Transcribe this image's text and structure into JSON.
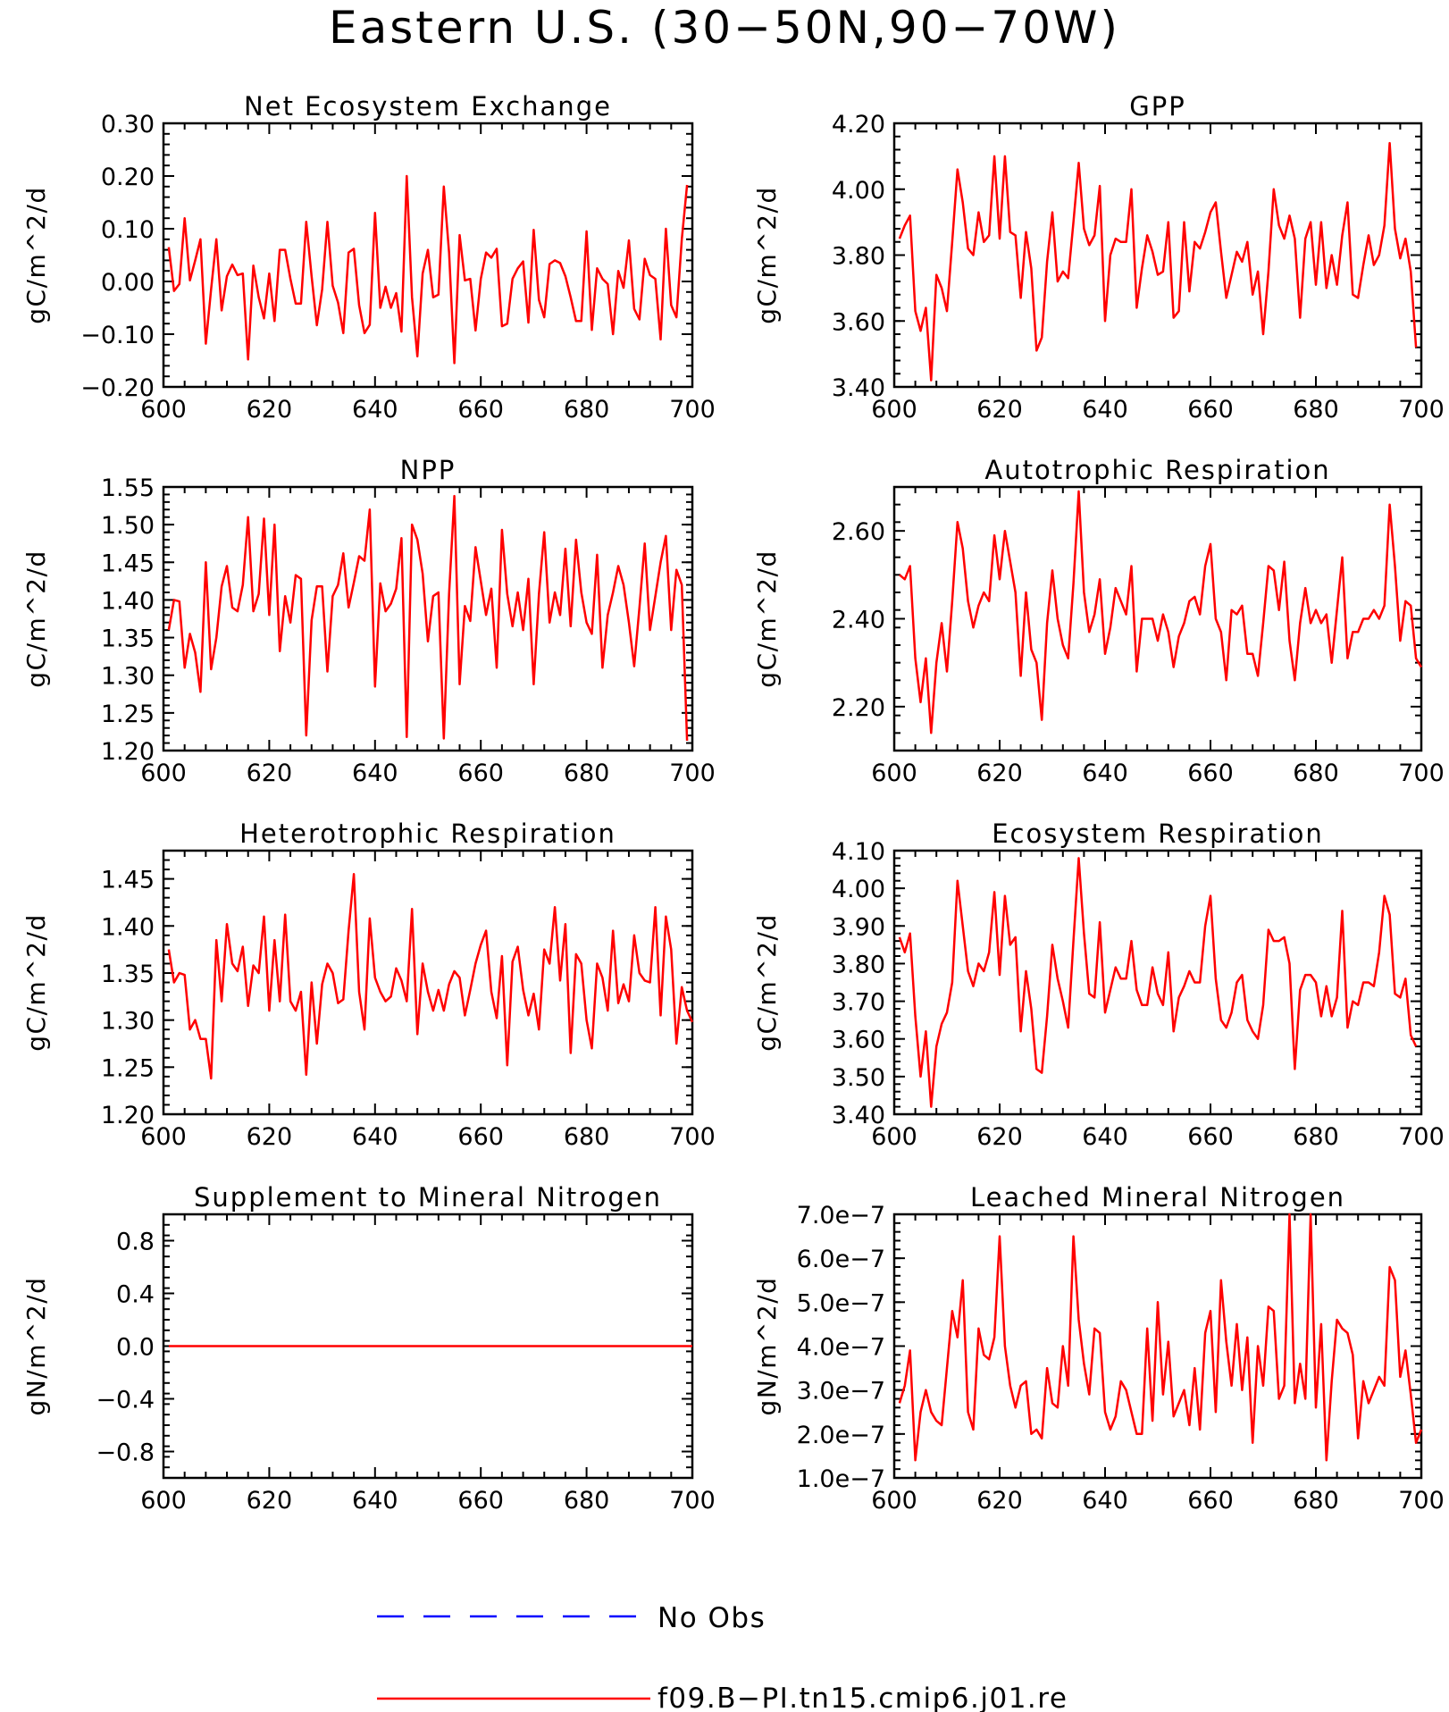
{
  "title": "Eastern U.S. (30−50N,90−70W)",
  "colors": {
    "model": "#ff0000",
    "obs": "#0000ff",
    "axis": "#000000"
  },
  "legend": [
    {
      "label": "No Obs",
      "color": "#0000ff",
      "style": "dashed"
    },
    {
      "label": "f09.B−PI.tn15.cmip6.j01.re",
      "color": "#ff0000",
      "style": "solid"
    }
  ],
  "chart_data": [
    {
      "type": "line",
      "title": "Net Ecosystem Exchange",
      "ylabel": "gC/m^2/d",
      "xlim": [
        600,
        700
      ],
      "xticks": [
        "600",
        "620",
        "640",
        "660",
        "680",
        "700"
      ],
      "ylim": [
        -0.2,
        0.3
      ],
      "yticks": [
        "−0.20",
        "−0.10",
        "0.00",
        "0.10",
        "0.20",
        "0.30"
      ],
      "x_start": 601,
      "series": [
        {
          "color": "#ff0000",
          "values": [
            0.065,
            -0.018,
            -0.005,
            0.12,
            0.002,
            0.04,
            0.08,
            -0.118,
            -0.015,
            0.08,
            -0.055,
            0.01,
            0.032,
            0.012,
            0.015,
            -0.148,
            0.03,
            -0.03,
            -0.07,
            0.015,
            -0.075,
            0.06,
            0.06,
            0.005,
            -0.042,
            -0.042,
            0.113,
            0.01,
            -0.083,
            -0.015,
            0.113,
            -0.008,
            -0.04,
            -0.098,
            0.055,
            0.062,
            -0.045,
            -0.098,
            -0.082,
            0.13,
            -0.05,
            -0.01,
            -0.05,
            -0.022,
            -0.095,
            0.2,
            -0.03,
            -0.142,
            0.015,
            0.06,
            -0.03,
            -0.025,
            0.18,
            0.055,
            -0.155,
            0.088,
            0.002,
            0.005,
            -0.093,
            0.005,
            0.055,
            0.045,
            0.062,
            -0.085,
            -0.08,
            0.005,
            0.025,
            0.038,
            -0.078,
            0.098,
            -0.035,
            -0.068,
            0.033,
            0.04,
            0.035,
            0.01,
            -0.03,
            -0.075,
            -0.075,
            0.095,
            -0.092,
            0.025,
            0.005,
            -0.005,
            -0.1,
            0.02,
            -0.012,
            0.078,
            -0.052,
            -0.072,
            0.043,
            0.012,
            0.005,
            -0.11,
            0.1,
            -0.045,
            -0.068,
            0.08,
            0.183
          ]
        }
      ]
    },
    {
      "type": "line",
      "title": "GPP",
      "ylabel": "gC/m^2/d",
      "xlim": [
        600,
        700
      ],
      "xticks": [
        "600",
        "620",
        "640",
        "660",
        "680",
        "700"
      ],
      "ylim": [
        3.4,
        4.2
      ],
      "yticks": [
        "3.40",
        "3.60",
        "3.80",
        "4.00",
        "4.20"
      ],
      "x_start": 601,
      "series": [
        {
          "color": "#ff0000",
          "values": [
            3.85,
            3.89,
            3.92,
            3.63,
            3.57,
            3.64,
            3.42,
            3.74,
            3.7,
            3.63,
            3.84,
            4.06,
            3.96,
            3.82,
            3.8,
            3.93,
            3.84,
            3.86,
            4.1,
            3.85,
            4.1,
            3.87,
            3.86,
            3.67,
            3.87,
            3.76,
            3.51,
            3.55,
            3.78,
            3.93,
            3.72,
            3.75,
            3.73,
            3.9,
            4.08,
            3.88,
            3.83,
            3.86,
            4.01,
            3.6,
            3.8,
            3.85,
            3.84,
            3.84,
            4.0,
            3.64,
            3.76,
            3.86,
            3.81,
            3.74,
            3.75,
            3.9,
            3.61,
            3.63,
            3.9,
            3.69,
            3.84,
            3.82,
            3.87,
            3.93,
            3.96,
            3.81,
            3.67,
            3.74,
            3.81,
            3.78,
            3.84,
            3.68,
            3.75,
            3.56,
            3.75,
            4.0,
            3.89,
            3.85,
            3.92,
            3.85,
            3.61,
            3.85,
            3.9,
            3.71,
            3.9,
            3.7,
            3.8,
            3.71,
            3.86,
            3.96,
            3.68,
            3.67,
            3.77,
            3.86,
            3.77,
            3.8,
            3.89,
            4.14,
            3.88,
            3.79,
            3.85,
            3.75,
            3.52
          ]
        }
      ]
    },
    {
      "type": "line",
      "title": "NPP",
      "ylabel": "gC/m^2/d",
      "xlim": [
        600,
        700
      ],
      "xticks": [
        "600",
        "620",
        "640",
        "660",
        "680",
        "700"
      ],
      "ylim": [
        1.2,
        1.55
      ],
      "yticks": [
        "1.20",
        "1.25",
        "1.30",
        "1.35",
        "1.40",
        "1.45",
        "1.50",
        "1.55"
      ],
      "x_start": 601,
      "series": [
        {
          "color": "#ff0000",
          "values": [
            1.36,
            1.4,
            1.398,
            1.31,
            1.355,
            1.33,
            1.278,
            1.45,
            1.308,
            1.35,
            1.418,
            1.445,
            1.39,
            1.385,
            1.42,
            1.51,
            1.385,
            1.408,
            1.508,
            1.38,
            1.5,
            1.332,
            1.405,
            1.37,
            1.433,
            1.428,
            1.22,
            1.373,
            1.418,
            1.418,
            1.305,
            1.405,
            1.42,
            1.462,
            1.39,
            1.423,
            1.458,
            1.452,
            1.52,
            1.285,
            1.422,
            1.385,
            1.395,
            1.415,
            1.482,
            1.218,
            1.5,
            1.48,
            1.435,
            1.345,
            1.405,
            1.41,
            1.216,
            1.408,
            1.538,
            1.288,
            1.392,
            1.372,
            1.47,
            1.425,
            1.38,
            1.415,
            1.31,
            1.493,
            1.408,
            1.365,
            1.41,
            1.36,
            1.428,
            1.288,
            1.408,
            1.49,
            1.37,
            1.41,
            1.38,
            1.468,
            1.365,
            1.48,
            1.41,
            1.37,
            1.355,
            1.46,
            1.31,
            1.38,
            1.41,
            1.445,
            1.42,
            1.37,
            1.312,
            1.39,
            1.475,
            1.36,
            1.405,
            1.45,
            1.485,
            1.36,
            1.44,
            1.42,
            1.213
          ]
        }
      ]
    },
    {
      "type": "line",
      "title": "Autotrophic Respiration",
      "ylabel": "gC/m^2/d",
      "xlim": [
        600,
        700
      ],
      "xticks": [
        "600",
        "620",
        "640",
        "660",
        "680",
        "700"
      ],
      "ylim": [
        2.1,
        2.7
      ],
      "yticks": [
        "2.20",
        "2.40",
        "2.60"
      ],
      "x_start": 601,
      "series": [
        {
          "color": "#ff0000",
          "values": [
            2.5,
            2.49,
            2.52,
            2.31,
            2.21,
            2.31,
            2.14,
            2.3,
            2.39,
            2.28,
            2.44,
            2.62,
            2.56,
            2.44,
            2.38,
            2.43,
            2.46,
            2.44,
            2.59,
            2.49,
            2.6,
            2.53,
            2.46,
            2.27,
            2.46,
            2.33,
            2.3,
            2.17,
            2.39,
            2.51,
            2.4,
            2.34,
            2.31,
            2.48,
            2.69,
            2.46,
            2.37,
            2.41,
            2.49,
            2.32,
            2.38,
            2.47,
            2.44,
            2.41,
            2.52,
            2.28,
            2.4,
            2.4,
            2.4,
            2.35,
            2.41,
            2.37,
            2.29,
            2.36,
            2.39,
            2.44,
            2.45,
            2.41,
            2.52,
            2.57,
            2.4,
            2.37,
            2.26,
            2.42,
            2.41,
            2.43,
            2.32,
            2.32,
            2.27,
            2.39,
            2.52,
            2.51,
            2.42,
            2.53,
            2.35,
            2.26,
            2.39,
            2.47,
            2.39,
            2.42,
            2.39,
            2.41,
            2.3,
            2.42,
            2.54,
            2.31,
            2.37,
            2.37,
            2.4,
            2.4,
            2.42,
            2.4,
            2.43,
            2.66,
            2.52,
            2.35,
            2.44,
            2.43,
            2.31,
            2.29
          ]
        }
      ]
    },
    {
      "type": "line",
      "title": "Heterotrophic Respiration",
      "ylabel": "gC/m^2/d",
      "xlim": [
        600,
        700
      ],
      "xticks": [
        "600",
        "620",
        "640",
        "660",
        "680",
        "700"
      ],
      "ylim": [
        1.2,
        1.48
      ],
      "yticks": [
        "1.20",
        "1.25",
        "1.30",
        "1.35",
        "1.40",
        "1.45"
      ],
      "x_start": 601,
      "series": [
        {
          "color": "#ff0000",
          "values": [
            1.375,
            1.34,
            1.35,
            1.348,
            1.29,
            1.3,
            1.28,
            1.28,
            1.238,
            1.385,
            1.32,
            1.402,
            1.36,
            1.352,
            1.378,
            1.315,
            1.358,
            1.35,
            1.41,
            1.31,
            1.385,
            1.32,
            1.412,
            1.32,
            1.31,
            1.33,
            1.242,
            1.34,
            1.275,
            1.338,
            1.36,
            1.35,
            1.318,
            1.322,
            1.395,
            1.455,
            1.33,
            1.29,
            1.408,
            1.345,
            1.33,
            1.32,
            1.325,
            1.355,
            1.342,
            1.32,
            1.418,
            1.285,
            1.36,
            1.33,
            1.31,
            1.332,
            1.31,
            1.338,
            1.352,
            1.345,
            1.305,
            1.332,
            1.36,
            1.38,
            1.395,
            1.33,
            1.302,
            1.368,
            1.252,
            1.362,
            1.378,
            1.332,
            1.305,
            1.328,
            1.29,
            1.375,
            1.36,
            1.42,
            1.342,
            1.402,
            1.265,
            1.37,
            1.36,
            1.3,
            1.27,
            1.36,
            1.345,
            1.31,
            1.395,
            1.318,
            1.338,
            1.32,
            1.39,
            1.35,
            1.342,
            1.34,
            1.42,
            1.305,
            1.41,
            1.375,
            1.275,
            1.335,
            1.31,
            1.298
          ]
        }
      ]
    },
    {
      "type": "line",
      "title": "Ecosystem Respiration",
      "ylabel": "gC/m^2/d",
      "xlim": [
        600,
        700
      ],
      "xticks": [
        "600",
        "620",
        "640",
        "660",
        "680",
        "700"
      ],
      "ylim": [
        3.4,
        4.1
      ],
      "yticks": [
        "3.40",
        "3.50",
        "3.60",
        "3.70",
        "3.80",
        "3.90",
        "4.00",
        "4.10"
      ],
      "x_start": 601,
      "series": [
        {
          "color": "#ff0000",
          "values": [
            3.87,
            3.83,
            3.88,
            3.66,
            3.5,
            3.62,
            3.42,
            3.58,
            3.64,
            3.67,
            3.75,
            4.02,
            3.9,
            3.78,
            3.74,
            3.8,
            3.78,
            3.83,
            3.99,
            3.77,
            3.98,
            3.85,
            3.87,
            3.62,
            3.78,
            3.68,
            3.52,
            3.51,
            3.66,
            3.85,
            3.76,
            3.7,
            3.63,
            3.86,
            4.08,
            3.88,
            3.72,
            3.71,
            3.91,
            3.67,
            3.73,
            3.79,
            3.76,
            3.76,
            3.86,
            3.73,
            3.69,
            3.69,
            3.79,
            3.72,
            3.69,
            3.83,
            3.62,
            3.71,
            3.74,
            3.78,
            3.75,
            3.75,
            3.9,
            3.98,
            3.76,
            3.65,
            3.63,
            3.67,
            3.75,
            3.77,
            3.65,
            3.62,
            3.6,
            3.69,
            3.89,
            3.86,
            3.86,
            3.87,
            3.8,
            3.52,
            3.73,
            3.77,
            3.77,
            3.75,
            3.66,
            3.74,
            3.66,
            3.71,
            3.94,
            3.63,
            3.7,
            3.69,
            3.75,
            3.75,
            3.74,
            3.83,
            3.98,
            3.93,
            3.72,
            3.71,
            3.76,
            3.61,
            3.58
          ]
        }
      ]
    },
    {
      "type": "line",
      "title": "Supplement to Mineral Nitrogen",
      "ylabel": "gN/m^2/d",
      "xlim": [
        600,
        700
      ],
      "xticks": [
        "600",
        "620",
        "640",
        "660",
        "680",
        "700"
      ],
      "ylim": [
        -1.0,
        1.0
      ],
      "yticks": [
        "−0.8",
        "−0.4",
        "0.0",
        "0.4",
        "0.8"
      ],
      "x_start": 601,
      "series": [
        {
          "color": "#ff0000",
          "values": [
            0,
            0
          ]
        }
      ],
      "series_x": [
        601,
        700
      ]
    },
    {
      "type": "line",
      "title": "Leached Mineral Nitrogen",
      "ylabel": "gN/m^2/d",
      "xlim": [
        600,
        700
      ],
      "xticks": [
        "600",
        "620",
        "640",
        "660",
        "680",
        "700"
      ],
      "ylim": [
        1e-07,
        7e-07
      ],
      "yticks": [
        "1.0e−7",
        "2.0e−7",
        "3.0e−7",
        "4.0e−7",
        "5.0e−7",
        "6.0e−7",
        "7.0e−7"
      ],
      "x_start": 601,
      "series": [
        {
          "color": "#ff0000",
          "values": [
            2.7e-07,
            3.1e-07,
            3.9e-07,
            1.4e-07,
            2.5e-07,
            3e-07,
            2.5e-07,
            2.3e-07,
            2.2e-07,
            3.5e-07,
            4.8e-07,
            4.2e-07,
            5.5e-07,
            2.5e-07,
            2.1e-07,
            4.4e-07,
            3.8e-07,
            3.7e-07,
            4.2e-07,
            6.5e-07,
            4e-07,
            3.1e-07,
            2.6e-07,
            3.1e-07,
            3.2e-07,
            2e-07,
            2.1e-07,
            1.9e-07,
            3.5e-07,
            2.7e-07,
            2.6e-07,
            4e-07,
            3.1e-07,
            6.5e-07,
            4.6e-07,
            3.6e-07,
            2.9e-07,
            4.4e-07,
            4.3e-07,
            2.5e-07,
            2.1e-07,
            2.4e-07,
            3.2e-07,
            3e-07,
            2.5e-07,
            2e-07,
            2e-07,
            4.4e-07,
            2.3e-07,
            5e-07,
            2.9e-07,
            4.1e-07,
            2.4e-07,
            2.7e-07,
            3e-07,
            2.2e-07,
            3.5e-07,
            2.1e-07,
            4.3e-07,
            4.8e-07,
            2.5e-07,
            5.5e-07,
            4.1e-07,
            3.1e-07,
            4.5e-07,
            3e-07,
            4.2e-07,
            1.8e-07,
            4e-07,
            3.1e-07,
            4.9e-07,
            4.8e-07,
            2.8e-07,
            3.1e-07,
            7e-07,
            2.7e-07,
            3.6e-07,
            2.8e-07,
            7e-07,
            2.6e-07,
            4.5e-07,
            1.4e-07,
            3.2e-07,
            4.6e-07,
            4.4e-07,
            4.3e-07,
            3.8e-07,
            1.9e-07,
            3.2e-07,
            2.7e-07,
            3e-07,
            3.3e-07,
            3.1e-07,
            5.8e-07,
            5.5e-07,
            3.3e-07,
            3.9e-07,
            2.9e-07,
            1.8e-07,
            2.1e-07
          ]
        }
      ]
    }
  ]
}
